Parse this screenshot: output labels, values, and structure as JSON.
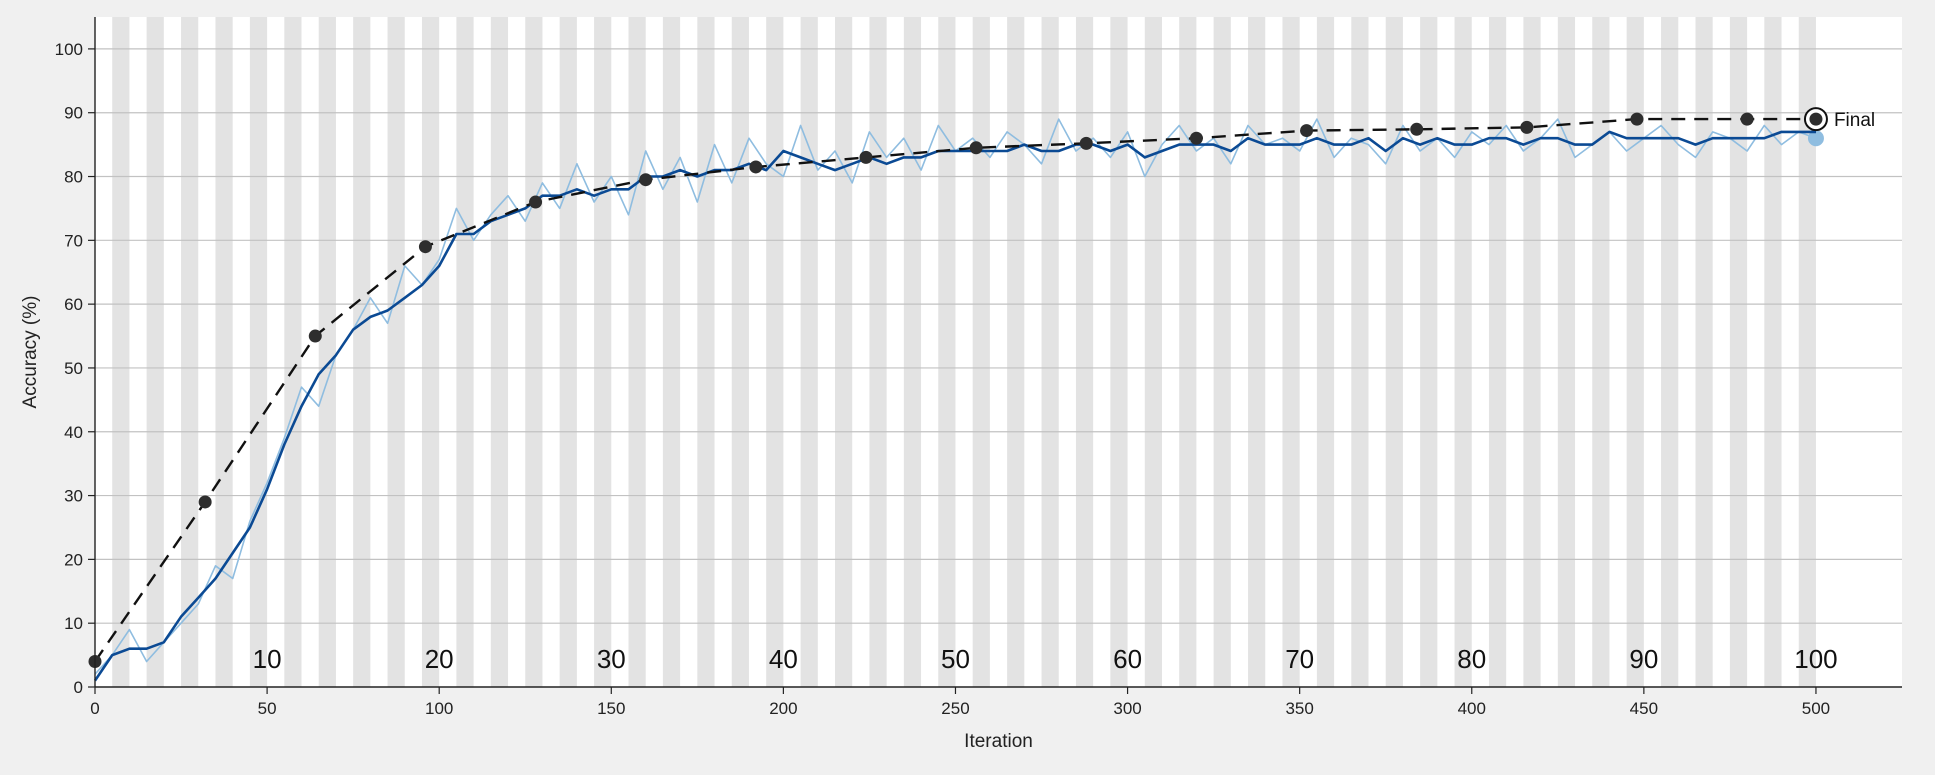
{
  "chart_data": {
    "type": "line",
    "xlabel": "Iteration",
    "ylabel": "Accuracy (%)",
    "xlim": [
      0,
      525
    ],
    "ylim": [
      0,
      105
    ],
    "x_ticks": [
      0,
      50,
      100,
      150,
      200,
      250,
      300,
      350,
      400,
      450,
      500
    ],
    "y_ticks": [
      0,
      10,
      20,
      30,
      40,
      50,
      60,
      70,
      80,
      90,
      100
    ],
    "grid": "horizontal",
    "epoch_band_width": 5,
    "epoch_labels": [
      10,
      20,
      30,
      40,
      50,
      60,
      70,
      80,
      90,
      100
    ],
    "colors": {
      "background": "#ffffff",
      "band": "#e3e3e3",
      "grid": "#c2c2c2",
      "raw": "#8fbde0",
      "smoothed": "#0b4a94",
      "validation": "#111111",
      "validation_marker": "#2e2e2e"
    },
    "series": [
      {
        "role": "raw",
        "x": [
          0,
          5,
          10,
          15,
          20,
          25,
          30,
          35,
          40,
          45,
          50,
          55,
          60,
          65,
          70,
          75,
          80,
          85,
          90,
          95,
          100,
          105,
          110,
          115,
          120,
          125,
          130,
          135,
          140,
          145,
          150,
          155,
          160,
          165,
          170,
          175,
          180,
          185,
          190,
          195,
          200,
          205,
          210,
          215,
          220,
          225,
          230,
          235,
          240,
          245,
          250,
          255,
          260,
          265,
          270,
          275,
          280,
          285,
          290,
          295,
          300,
          305,
          310,
          315,
          320,
          325,
          330,
          335,
          340,
          345,
          350,
          355,
          360,
          365,
          370,
          375,
          380,
          385,
          390,
          395,
          400,
          405,
          410,
          415,
          420,
          425,
          430,
          435,
          440,
          445,
          450,
          455,
          460,
          465,
          470,
          475,
          480,
          485,
          490,
          495,
          500
        ],
        "y": [
          2,
          5,
          9,
          4,
          7,
          10,
          13,
          19,
          17,
          26,
          32,
          39,
          47,
          44,
          52,
          56,
          61,
          57,
          66,
          63,
          67,
          75,
          70,
          74,
          77,
          73,
          79,
          75,
          82,
          76,
          80,
          74,
          84,
          78,
          83,
          76,
          85,
          79,
          86,
          82,
          80,
          88,
          81,
          84,
          79,
          87,
          83,
          86,
          81,
          88,
          84,
          86,
          83,
          87,
          85,
          82,
          89,
          84,
          86,
          83,
          87,
          80,
          85,
          88,
          84,
          86,
          82,
          88,
          85,
          86,
          84,
          89,
          83,
          86,
          85,
          82,
          88,
          84,
          86,
          83,
          87,
          85,
          88,
          84,
          86,
          89,
          83,
          85,
          87,
          84,
          86,
          88,
          85,
          83,
          87,
          86,
          84,
          88,
          85,
          87,
          86
        ]
      },
      {
        "role": "smoothed",
        "x": [
          0,
          5,
          10,
          15,
          20,
          25,
          30,
          35,
          40,
          45,
          50,
          55,
          60,
          65,
          70,
          75,
          80,
          85,
          90,
          95,
          100,
          105,
          110,
          115,
          120,
          125,
          130,
          135,
          140,
          145,
          150,
          155,
          160,
          165,
          170,
          175,
          180,
          185,
          190,
          195,
          200,
          205,
          210,
          215,
          220,
          225,
          230,
          235,
          240,
          245,
          250,
          255,
          260,
          265,
          270,
          275,
          280,
          285,
          290,
          295,
          300,
          305,
          310,
          315,
          320,
          325,
          330,
          335,
          340,
          345,
          350,
          355,
          360,
          365,
          370,
          375,
          380,
          385,
          390,
          395,
          400,
          405,
          410,
          415,
          420,
          425,
          430,
          435,
          440,
          445,
          450,
          455,
          460,
          465,
          470,
          475,
          480,
          485,
          490,
          495,
          500
        ],
        "y": [
          1,
          5,
          6,
          6,
          7,
          11,
          14,
          17,
          21,
          25,
          31,
          38,
          44,
          49,
          52,
          56,
          58,
          59,
          61,
          63,
          66,
          71,
          71,
          73,
          74,
          75,
          77,
          77,
          78,
          77,
          78,
          78,
          80,
          80,
          81,
          80,
          81,
          81,
          82,
          81,
          84,
          83,
          82,
          81,
          82,
          83,
          82,
          83,
          83,
          84,
          84,
          84,
          84,
          84,
          85,
          84,
          84,
          85,
          85,
          84,
          85,
          83,
          84,
          85,
          85,
          85,
          84,
          86,
          85,
          85,
          85,
          86,
          85,
          85,
          86,
          84,
          86,
          85,
          86,
          85,
          85,
          86,
          86,
          85,
          86,
          86,
          85,
          85,
          87,
          86,
          86,
          86,
          86,
          85,
          86,
          86,
          86,
          86,
          87,
          87,
          87
        ]
      },
      {
        "role": "validation",
        "x": [
          0,
          32,
          64,
          96,
          128,
          160,
          192,
          224,
          256,
          288,
          320,
          352,
          384,
          416,
          448,
          480,
          500
        ],
        "y": [
          4,
          29,
          55,
          69,
          76,
          79.5,
          81.5,
          83,
          84.5,
          85.2,
          86,
          87.2,
          87.4,
          87.7,
          89,
          89,
          89
        ]
      }
    ],
    "annotations": [
      {
        "text": "Final",
        "x": 500,
        "y": 89
      }
    ]
  }
}
